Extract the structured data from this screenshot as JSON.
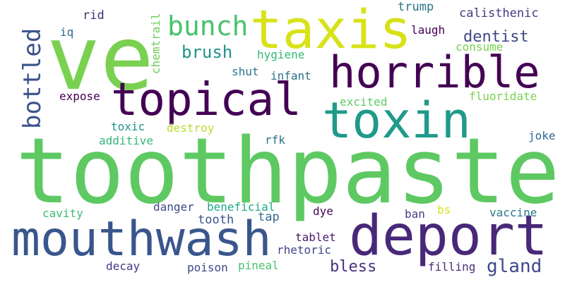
{
  "cloud": {
    "background": "#ffffff",
    "words": [
      {
        "text": "toothpaste",
        "color": "#5ec962"
      },
      {
        "text": "ve",
        "color": "#7ad151"
      },
      {
        "text": "taxis",
        "color": "#d8e219"
      },
      {
        "text": "horrible",
        "color": "#440154"
      },
      {
        "text": "topical",
        "color": "#440154"
      },
      {
        "text": "toxin",
        "color": "#1f9a8a"
      },
      {
        "text": "mouthwash",
        "color": "#39568c"
      },
      {
        "text": "deport",
        "color": "#482878"
      },
      {
        "text": "bunch",
        "color": "#4ac16d"
      },
      {
        "text": "bottled",
        "color": "#3b528b"
      },
      {
        "text": "brush",
        "color": "#21918c"
      },
      {
        "text": "dentist",
        "color": "#3e4989"
      },
      {
        "text": "gland",
        "color": "#3e4a89"
      },
      {
        "text": "bless",
        "color": "#46337e"
      },
      {
        "text": "rid",
        "color": "#472c7a"
      },
      {
        "text": "iq",
        "color": "#31688e"
      },
      {
        "text": "chemtrail",
        "color": "#6ece58"
      },
      {
        "text": "trump",
        "color": "#2c728e"
      },
      {
        "text": "calisthenic",
        "color": "#443983"
      },
      {
        "text": "laugh",
        "color": "#440154"
      },
      {
        "text": "hygiene",
        "color": "#35b779"
      },
      {
        "text": "consume",
        "color": "#7ad151"
      },
      {
        "text": "shut",
        "color": "#2a788e"
      },
      {
        "text": "infant",
        "color": "#2c728e"
      },
      {
        "text": "expose",
        "color": "#440154"
      },
      {
        "text": "excited",
        "color": "#5ec962"
      },
      {
        "text": "fluoridate",
        "color": "#7ad151"
      },
      {
        "text": "toxic",
        "color": "#21918c"
      },
      {
        "text": "destroy",
        "color": "#b5de2b"
      },
      {
        "text": "additive",
        "color": "#35b779"
      },
      {
        "text": "rfk",
        "color": "#2c728e"
      },
      {
        "text": "joke",
        "color": "#31688e"
      },
      {
        "text": "cavity",
        "color": "#3dbc74"
      },
      {
        "text": "danger",
        "color": "#3e4989"
      },
      {
        "text": "beneficial",
        "color": "#22a884"
      },
      {
        "text": "dye",
        "color": "#46085c"
      },
      {
        "text": "tooth",
        "color": "#3b528b"
      },
      {
        "text": "tap",
        "color": "#31688e"
      },
      {
        "text": "bs",
        "color": "#d8e219"
      },
      {
        "text": "ban",
        "color": "#443983"
      },
      {
        "text": "vaccine",
        "color": "#2a788e"
      },
      {
        "text": "tablet",
        "color": "#481a6c"
      },
      {
        "text": "rhetoric",
        "color": "#414487"
      },
      {
        "text": "decay",
        "color": "#443983"
      },
      {
        "text": "poison",
        "color": "#3e4989"
      },
      {
        "text": "pineal",
        "color": "#4ac16d"
      },
      {
        "text": "filling",
        "color": "#472d7b"
      }
    ]
  }
}
